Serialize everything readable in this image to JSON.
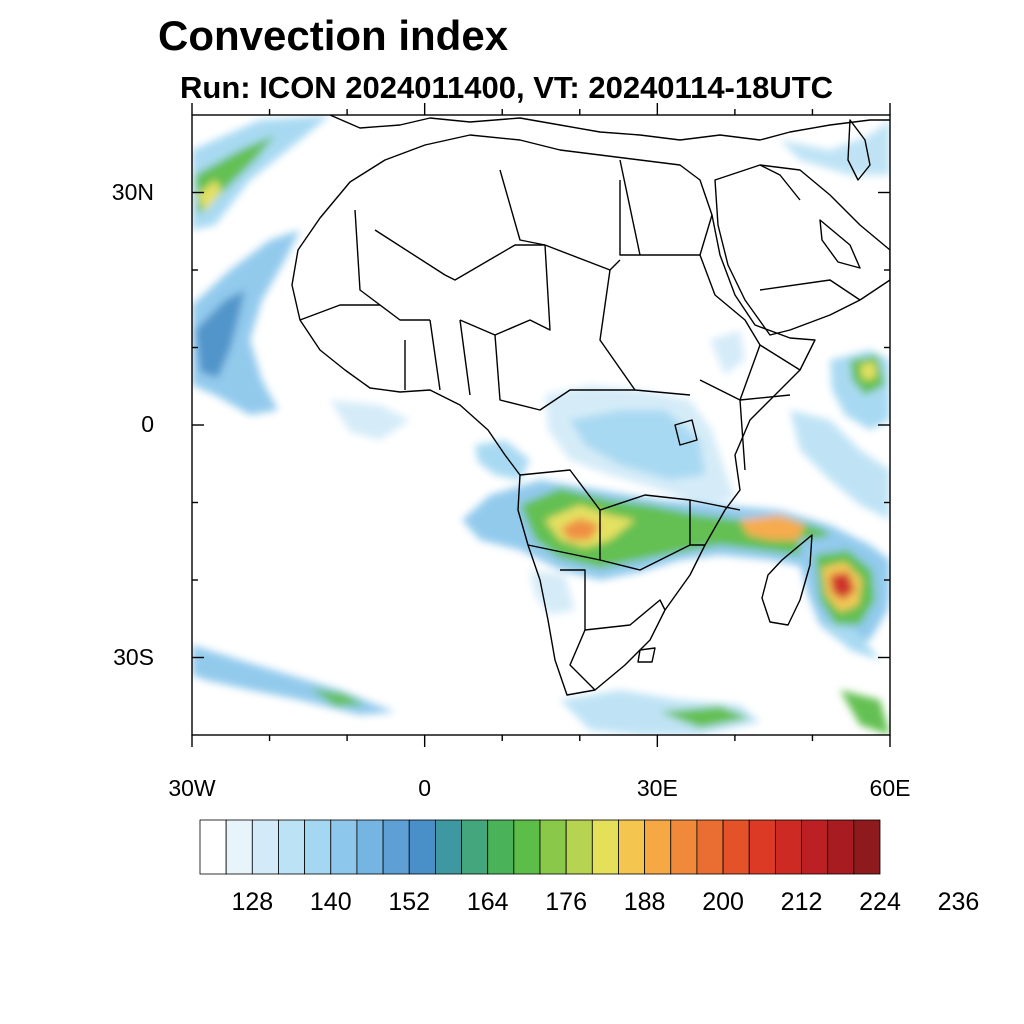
{
  "title": "Convection index",
  "subtitle": "Run: ICON 2024011400,  VT: 20240114-18UTC",
  "map": {
    "projection": "equirectangular",
    "lon_range": [
      -30,
      60
    ],
    "lat_range": [
      -40,
      40
    ],
    "lat_ticks": [
      {
        "value": 30,
        "label": "30N"
      },
      {
        "value": 0,
        "label": "0"
      },
      {
        "value": -30,
        "label": "30S"
      }
    ],
    "lon_ticks": [
      {
        "value": -30,
        "label": "30W"
      },
      {
        "value": 0,
        "label": "0"
      },
      {
        "value": 30,
        "label": "30E"
      },
      {
        "value": 60,
        "label": "60E"
      }
    ]
  },
  "colorbar": {
    "colors": [
      "#ffffff",
      "#e8f4fb",
      "#d3ebf8",
      "#bce2f5",
      "#a4d8f2",
      "#8dc8ec",
      "#75b5e2",
      "#5e9fd6",
      "#4a90c8",
      "#3e98a2",
      "#44a67c",
      "#4ab359",
      "#5cbd48",
      "#8ac84a",
      "#b6d352",
      "#e4e05a",
      "#f5c64f",
      "#f6a844",
      "#f08a3a",
      "#ea6d31",
      "#e45229",
      "#dc3a25",
      "#cd2a24",
      "#bd2024",
      "#a81b21",
      "#8f1a1d"
    ],
    "labels": [
      "128",
      "140",
      "152",
      "164",
      "176",
      "188",
      "200",
      "212",
      "224",
      "236"
    ]
  }
}
